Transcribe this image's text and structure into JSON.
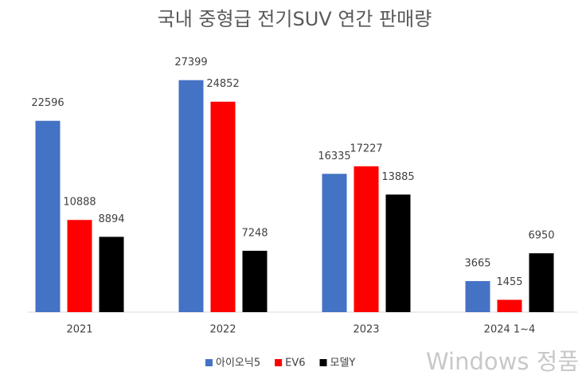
{
  "chart_data": {
    "type": "bar",
    "title": "국내 중형급 전기SUV  연간 판매량",
    "categories": [
      "2021",
      "2022",
      "2023",
      "2024 1~4"
    ],
    "series": [
      {
        "name": "아이오닉5",
        "color": "#4472c4",
        "values": [
          22596,
          27399,
          16335,
          3665
        ]
      },
      {
        "name": "EV6",
        "color": "#ff0000",
        "values": [
          10888,
          24852,
          17227,
          1455
        ]
      },
      {
        "name": "모델Y",
        "color": "#000000",
        "values": [
          8894,
          7248,
          13885,
          6950
        ]
      }
    ],
    "ylim": [
      0,
      30000
    ],
    "legend": "bottom"
  },
  "watermark": "Windows 정품"
}
